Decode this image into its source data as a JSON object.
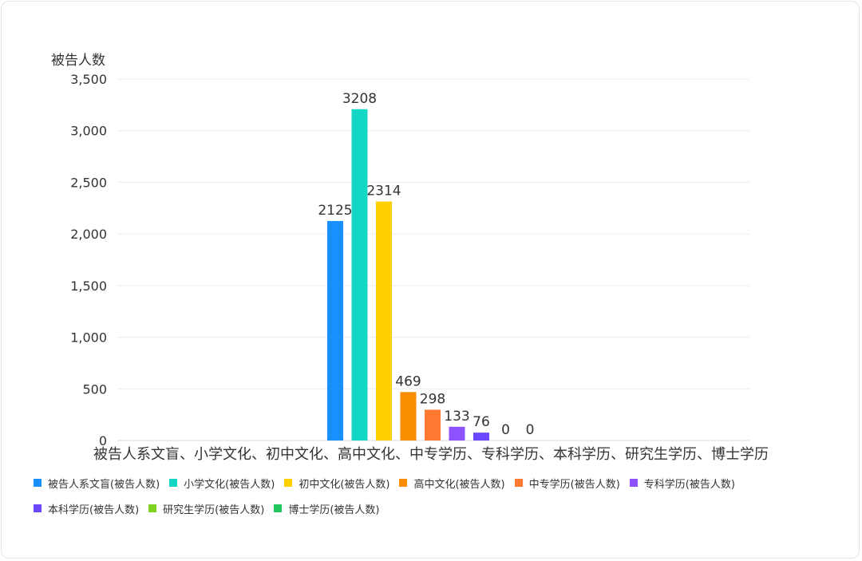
{
  "chart_data": {
    "type": "bar",
    "ylabel": "被告人数",
    "ylim": [
      0,
      3500
    ],
    "yticks": [
      0,
      500,
      1000,
      1500,
      2000,
      2500,
      3000,
      3500
    ],
    "ytick_labels": [
      "0",
      "500",
      "1,000",
      "1,500",
      "2,000",
      "2,500",
      "3,000",
      "3,500"
    ],
    "category_label": "被告人系文盲、小学文化、初中文化、高中文化、中专学历、专科学历、本科学历、研究生学历、博士学历",
    "grid": true,
    "legend_position": "bottom",
    "series": [
      {
        "name": "被告人系文盲(被告人数)",
        "value": 2125,
        "color": "#1890ff"
      },
      {
        "name": "小学文化(被告人数)",
        "value": 3208,
        "color": "#13d6c5"
      },
      {
        "name": "初中文化(被告人数)",
        "value": 2314,
        "color": "#ffd000"
      },
      {
        "name": "高中文化(被告人数)",
        "value": 469,
        "color": "#fa8c00"
      },
      {
        "name": "中专学历(被告人数)",
        "value": 298,
        "color": "#ff7a30"
      },
      {
        "name": "专科学历(被告人数)",
        "value": 133,
        "color": "#8c52ff"
      },
      {
        "name": "本科学历(被告人数)",
        "value": 76,
        "color": "#6b47ff"
      },
      {
        "name": "研究生学历(被告人数)",
        "value": 0,
        "color": "#7ed321"
      },
      {
        "name": "博士学历(被告人数)",
        "value": 0,
        "color": "#22c55e"
      }
    ]
  }
}
